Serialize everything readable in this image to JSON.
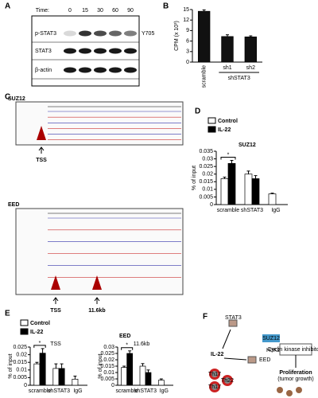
{
  "panel_labels": [
    "A",
    "B",
    "C",
    "D",
    "E",
    "F"
  ],
  "blot": {
    "time_label": "Time:",
    "times": [
      "0",
      "15",
      "30",
      "60",
      "90"
    ],
    "rows": [
      "p-STAT3",
      "STAT3",
      "β-actin"
    ],
    "site": "Y705"
  },
  "browser": {
    "tracks": [
      {
        "title": "SUZ12",
        "markers": [
          "TSS"
        ]
      },
      {
        "title": "EED",
        "markers": [
          "TSS",
          "11.6kb"
        ]
      }
    ]
  },
  "diagram": {
    "nodes": [
      "STAT3",
      "SUZ12",
      "EED",
      "IL-22",
      "Th17",
      "Th22",
      "H3K27me3",
      "Cyclin kinase inhibitors",
      "Proliferation",
      "(tumor growth)"
    ]
  },
  "chart_data": [
    {
      "type": "bar",
      "ylabel": "CPM (x 10³)",
      "categories": [
        "scramble",
        "sh1",
        "sh2"
      ],
      "group_label": "shSTAT3",
      "values": [
        14.5,
        7.3,
        7.2
      ],
      "errors": [
        0.4,
        0.5,
        0.3
      ],
      "color": "#111111",
      "ylim": [
        0,
        15
      ],
      "yticks": [
        0,
        3,
        6,
        9,
        12,
        15
      ]
    },
    {
      "type": "bar",
      "title": "SUZ12",
      "ylabel": "% of input",
      "categories": [
        "scramble",
        "shSTAT3",
        "IgG"
      ],
      "series": [
        {
          "name": "Control",
          "color": "#ffffff",
          "values": [
            0.017,
            0.02,
            0.007
          ],
          "errors": [
            0.001,
            0.002,
            0.0005
          ]
        },
        {
          "name": "IL-22",
          "color": "#000000",
          "values": [
            0.027,
            0.017,
            null
          ],
          "errors": [
            0.002,
            0.002,
            null
          ]
        }
      ],
      "ylim": [
        0,
        0.035
      ],
      "yticks": [
        0,
        0.005,
        0.01,
        0.015,
        0.02,
        0.025,
        0.03,
        0.035
      ],
      "annotation": "*"
    },
    {
      "type": "bar",
      "subtitle": "TSS",
      "ylabel": "% of input",
      "categories": [
        "scramble",
        "shSTAT3",
        "IgG"
      ],
      "series": [
        {
          "name": "Control",
          "color": "#ffffff",
          "values": [
            0.014,
            0.011,
            0.004
          ],
          "errors": [
            0.001,
            0.003,
            0.002
          ]
        },
        {
          "name": "IL-22",
          "color": "#000000",
          "values": [
            0.021,
            0.011,
            null
          ],
          "errors": [
            0.003,
            0.003,
            null
          ]
        }
      ],
      "ylim": [
        0,
        0.025
      ],
      "yticks": [
        0,
        0.005,
        0.01,
        0.015,
        0.02,
        0.025
      ],
      "annotation": "*"
    },
    {
      "type": "bar",
      "title": "EED",
      "subtitle": "11.6kb",
      "ylabel": "% of input",
      "categories": [
        "scramble",
        "shSTAT3",
        "IgG"
      ],
      "series": [
        {
          "color": "#ffffff",
          "values": [
            0.014,
            0.015,
            0.004
          ],
          "errors": [
            0.001,
            0.002,
            0.001
          ]
        },
        {
          "color": "#000000",
          "values": [
            0.025,
            0.01,
            null
          ],
          "errors": [
            0.002,
            0.002,
            null
          ]
        }
      ],
      "ylim": [
        0,
        0.03
      ],
      "yticks": [
        0,
        0.005,
        0.01,
        0.015,
        0.02,
        0.025,
        0.03
      ],
      "annotation": "*"
    }
  ]
}
